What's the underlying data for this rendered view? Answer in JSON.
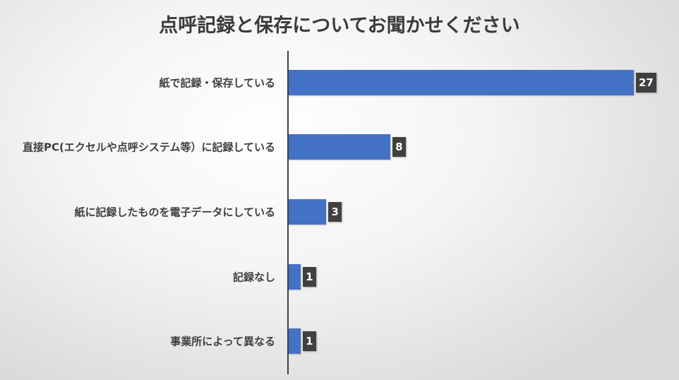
{
  "chart_data": {
    "type": "bar",
    "orientation": "horizontal",
    "title": "点呼記録と保存についてお聞かせください",
    "categories": [
      "紙で記録・保存している",
      "直接PC(エクセルや点呼システム等）に記録している",
      "紙に記録したものを電子データにしている",
      "記録なし",
      "事業所によって異なる"
    ],
    "values": [
      27,
      8,
      3,
      1,
      1
    ],
    "data_labels": true,
    "grid": false,
    "legend": "none",
    "colors": {
      "bar": "#4472c4",
      "label_bg": "#404040"
    }
  }
}
